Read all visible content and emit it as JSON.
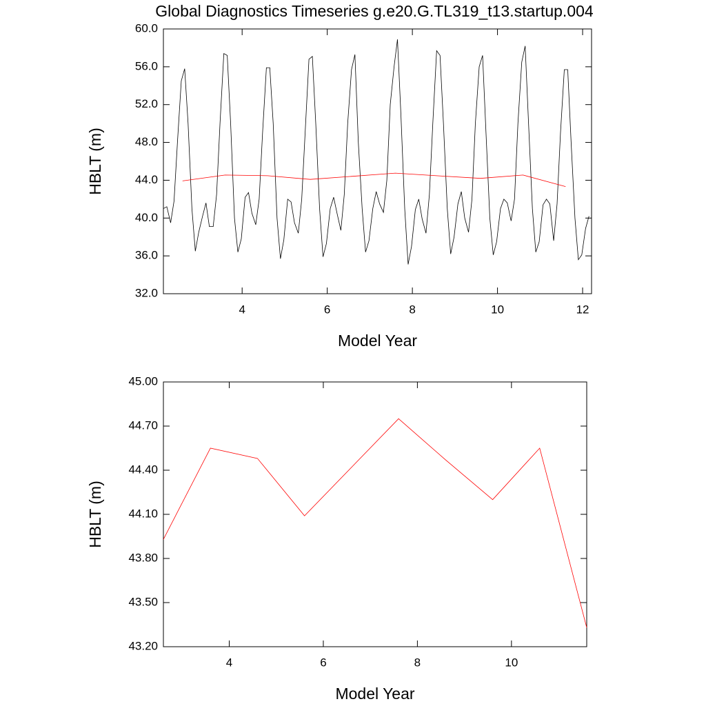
{
  "chart_data": [
    {
      "type": "line",
      "title": "Global Diagnostics Timeseries g.e20.G.TL319_t13.startup.004",
      "x_label": "Model Year",
      "y_label": "HBLT (m)",
      "xlim": [
        2.15,
        12.21
      ],
      "xticks": [
        4,
        6,
        8,
        10,
        12
      ],
      "ylim": [
        32,
        60
      ],
      "yticks": [
        {
          "value": 32,
          "label": "32.0"
        },
        {
          "value": 36,
          "label": "36.0"
        },
        {
          "value": 40,
          "label": "40.0"
        },
        {
          "value": 44,
          "label": "44.0"
        },
        {
          "value": 48,
          "label": "48.0"
        },
        {
          "value": 52,
          "label": "52.0"
        },
        {
          "value": 56,
          "label": "56.0"
        },
        {
          "value": 60,
          "label": "60.0"
        }
      ],
      "series": [
        {
          "color": "#000000",
          "x": [
            2.15,
            2.23,
            2.32,
            2.4,
            2.48,
            2.57,
            2.65,
            2.73,
            2.82,
            2.9,
            2.98,
            3.07,
            3.15,
            3.23,
            3.32,
            3.4,
            3.48,
            3.57,
            3.65,
            3.73,
            3.82,
            3.9,
            3.98,
            4.07,
            4.15,
            4.23,
            4.32,
            4.4,
            4.48,
            4.57,
            4.65,
            4.73,
            4.82,
            4.9,
            4.98,
            5.07,
            5.15,
            5.23,
            5.32,
            5.4,
            5.48,
            5.57,
            5.65,
            5.73,
            5.82,
            5.9,
            5.98,
            6.07,
            6.15,
            6.23,
            6.32,
            6.4,
            6.48,
            6.57,
            6.65,
            6.73,
            6.82,
            6.9,
            6.98,
            7.07,
            7.15,
            7.23,
            7.32,
            7.4,
            7.48,
            7.57,
            7.65,
            7.73,
            7.82,
            7.9,
            7.98,
            8.07,
            8.15,
            8.23,
            8.32,
            8.4,
            8.48,
            8.57,
            8.65,
            8.73,
            8.82,
            8.9,
            8.98,
            9.07,
            9.15,
            9.23,
            9.32,
            9.4,
            9.48,
            9.57,
            9.65,
            9.73,
            9.82,
            9.9,
            9.98,
            10.07,
            10.15,
            10.23,
            10.32,
            10.4,
            10.48,
            10.57,
            10.65,
            10.73,
            10.82,
            10.9,
            10.98,
            11.07,
            11.15,
            11.23,
            11.32,
            11.4,
            11.48,
            11.57,
            11.65,
            11.73,
            11.82,
            11.9,
            11.98,
            12.07,
            12.15
          ],
          "values": [
            41.0,
            41.2,
            39.5,
            41.8,
            48,
            54.5,
            55.8,
            50,
            41,
            36.5,
            38.5,
            40.2,
            41.6,
            39.1,
            39.1,
            42.5,
            50,
            57.4,
            57.2,
            50,
            40,
            36.4,
            37.8,
            42.2,
            42.7,
            40.5,
            39.3,
            42,
            49,
            55.9,
            55.9,
            50,
            40,
            35.7,
            37.7,
            42,
            41.7,
            39.5,
            38.4,
            42,
            49,
            56.8,
            57.1,
            50,
            41,
            35.9,
            37.3,
            41,
            42.2,
            40.5,
            38.7,
            42.5,
            50,
            55.7,
            57.3,
            48,
            41,
            36.4,
            37.6,
            41,
            42.8,
            41.5,
            40.6,
            44,
            52,
            56,
            58.9,
            51,
            41,
            35.1,
            37,
            40.9,
            42,
            39.9,
            38.4,
            42.5,
            50,
            57.7,
            57.2,
            50,
            41,
            36.2,
            38,
            41.5,
            42.8,
            40,
            38.5,
            42,
            50,
            56,
            57.2,
            49,
            40,
            36.1,
            37.5,
            41,
            42,
            41.6,
            39.7,
            42,
            50,
            56.5,
            58.2,
            50,
            41,
            36.4,
            37.5,
            41.4,
            42,
            41.5,
            37.6,
            41.5,
            49,
            55.7,
            55.7,
            48,
            40,
            35.6,
            36.1,
            38.9,
            40.2
          ]
        },
        {
          "color": "#ff0000",
          "x": [
            2.6,
            3.6,
            4.6,
            5.6,
            6.6,
            7.6,
            8.6,
            9.6,
            10.6,
            11.6
          ],
          "values": [
            43.93,
            44.55,
            44.48,
            44.09,
            44.42,
            44.75,
            44.47,
            44.2,
            44.55,
            43.33
          ]
        }
      ]
    },
    {
      "type": "line",
      "x_label": "Model Year",
      "y_label": "HBLT (m)",
      "xlim": [
        2.6,
        11.6
      ],
      "xticks": [
        4,
        6,
        8,
        10
      ],
      "ylim": [
        43.2,
        45.0
      ],
      "yticks": [
        {
          "value": 43.2,
          "label": "43.20"
        },
        {
          "value": 43.5,
          "label": "43.50"
        },
        {
          "value": 43.8,
          "label": "43.80"
        },
        {
          "value": 44.1,
          "label": "44.10"
        },
        {
          "value": 44.4,
          "label": "44.40"
        },
        {
          "value": 44.7,
          "label": "44.70"
        },
        {
          "value": 45.0,
          "label": "45.00"
        }
      ],
      "series": [
        {
          "color": "#ff0000",
          "x": [
            2.6,
            3.6,
            4.6,
            5.6,
            6.6,
            7.6,
            8.6,
            9.6,
            10.6,
            11.6
          ],
          "values": [
            43.93,
            44.55,
            44.48,
            44.09,
            44.42,
            44.75,
            44.47,
            44.2,
            44.55,
            43.33
          ]
        }
      ]
    }
  ]
}
